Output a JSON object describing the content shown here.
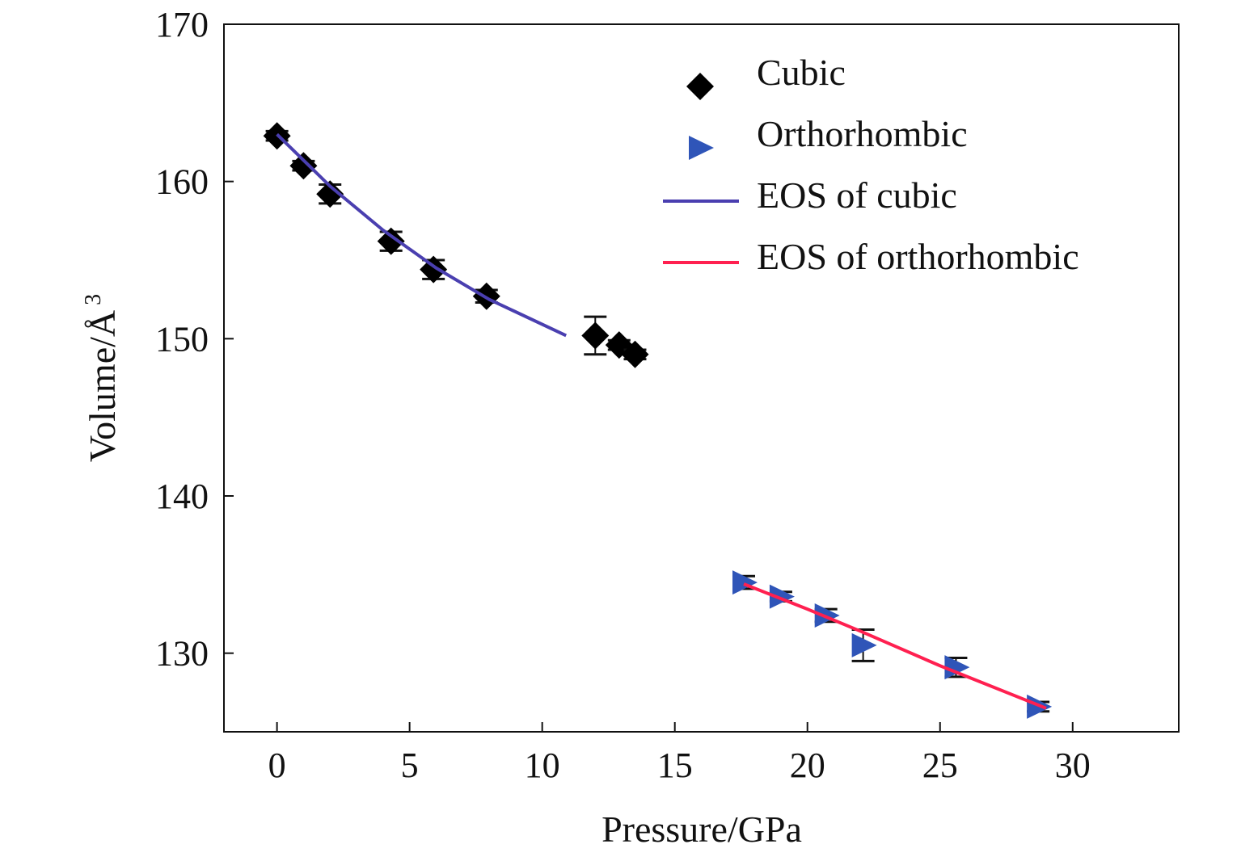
{
  "chart_data": {
    "type": "scatter",
    "xlabel": "Pressure/GPa",
    "ylabel": "Volume/Å",
    "ylabel_superscript": "3",
    "xlim": [
      -2,
      34
    ],
    "ylim": [
      125,
      170
    ],
    "xticks": [
      0,
      5,
      10,
      15,
      20,
      25,
      30
    ],
    "yticks": [
      130,
      140,
      150,
      160,
      170
    ],
    "grid": false,
    "legend_position": "top-right",
    "series": [
      {
        "name": "Cubic",
        "kind": "points",
        "marker": "diamond",
        "color": "#000000",
        "points": [
          {
            "x": 0.0,
            "y": 162.9,
            "err": 0.3
          },
          {
            "x": 1.0,
            "y": 161.0,
            "err": 0.3
          },
          {
            "x": 2.0,
            "y": 159.2,
            "err": 0.6
          },
          {
            "x": 4.3,
            "y": 156.2,
            "err": 0.6
          },
          {
            "x": 5.9,
            "y": 154.4,
            "err": 0.6
          },
          {
            "x": 7.9,
            "y": 152.7,
            "err": 0.4
          },
          {
            "x": 12.0,
            "y": 150.2,
            "err": 1.2
          },
          {
            "x": 12.9,
            "y": 149.6,
            "err": 0.3
          },
          {
            "x": 13.5,
            "y": 149.0,
            "err": 0.3
          }
        ]
      },
      {
        "name": "Orthorhombic",
        "kind": "points",
        "marker": "triangle-right",
        "color": "#2f55b8",
        "points": [
          {
            "x": 17.6,
            "y": 134.5,
            "err": 0.4
          },
          {
            "x": 19.0,
            "y": 133.6,
            "err": 0.3
          },
          {
            "x": 20.7,
            "y": 132.4,
            "err": 0.4
          },
          {
            "x": 22.1,
            "y": 130.5,
            "err": 1.0
          },
          {
            "x": 25.6,
            "y": 129.1,
            "err": 0.6
          },
          {
            "x": 28.7,
            "y": 126.6,
            "err": 0.3
          }
        ]
      },
      {
        "name": "EOS of cubic",
        "kind": "line",
        "color": "#4a3fb0",
        "points": [
          {
            "x": 0,
            "y": 163.0
          },
          {
            "x": 2,
            "y": 159.7
          },
          {
            "x": 4,
            "y": 156.9
          },
          {
            "x": 6,
            "y": 154.5
          },
          {
            "x": 8,
            "y": 152.5
          },
          {
            "x": 10.9,
            "y": 150.2
          }
        ]
      },
      {
        "name": "EOS of orthorhombic",
        "kind": "line",
        "color": "#ff2050",
        "points": [
          {
            "x": 17.6,
            "y": 134.4
          },
          {
            "x": 20,
            "y": 132.8
          },
          {
            "x": 22,
            "y": 131.4
          },
          {
            "x": 25,
            "y": 129.2
          },
          {
            "x": 29,
            "y": 126.5
          }
        ]
      }
    ]
  }
}
